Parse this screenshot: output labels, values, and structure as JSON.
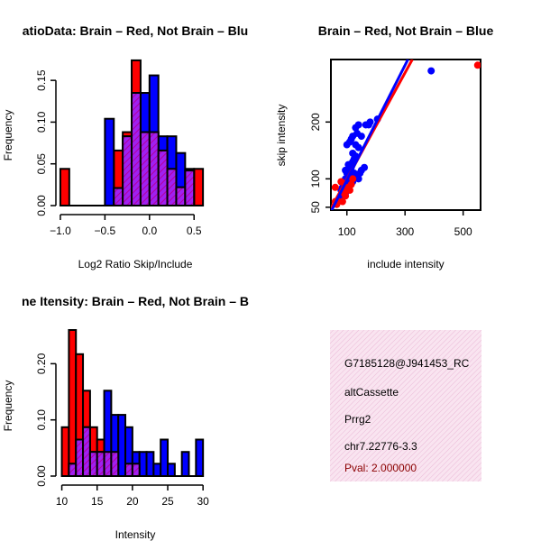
{
  "chart_data": [
    {
      "id": "ratio_hist",
      "type": "histogram",
      "title": "RatioData: Brain - Red, Not Brain - Blue",
      "title_shown": "atioData: Brain – Red, Not Brain – Blu",
      "xlabel": "Log2 Ratio Skip/Include",
      "ylabel": "Frequency",
      "xlim": [
        -1.05,
        0.7
      ],
      "ylim": [
        0,
        0.175
      ],
      "xticks": [
        -1.0,
        -0.5,
        0.0,
        0.5
      ],
      "xtick_labels": [
        "−1.0",
        "−0.5",
        "0.0",
        "0.5"
      ],
      "yticks": [
        0.0,
        0.05,
        0.1,
        0.15
      ],
      "ytick_labels": [
        "0.00",
        "0.05",
        "0.10",
        "0.15"
      ],
      "bin_edges": [
        -1.0,
        -0.9,
        -0.8,
        -0.7,
        -0.6,
        -0.5,
        -0.4,
        -0.3,
        -0.2,
        -0.1,
        0.0,
        0.1,
        0.2,
        0.3,
        0.4,
        0.5,
        0.6
      ],
      "series": [
        {
          "name": "Brain",
          "color": "#ff0000",
          "values": [
            0.044,
            0,
            0,
            0,
            0,
            0,
            0.066,
            0.088,
            0.174,
            0.088,
            0.088,
            0.066,
            0.044,
            0.022,
            0.044,
            0.044
          ]
        },
        {
          "name": "Not Brain",
          "color": "#0000ff",
          "values": [
            0,
            0,
            0,
            0,
            0,
            0.104,
            0.021,
            0.083,
            0.135,
            0.135,
            0.156,
            0.083,
            0.083,
            0.063,
            0.042,
            0
          ]
        }
      ],
      "overlap_color": "#a020f0"
    },
    {
      "id": "scatter",
      "type": "scatter",
      "title": "Brain - Red, Not Brain - Blue",
      "title_shown": "Brain – Red, Not Brain – Blue",
      "xlabel": "include intensity",
      "ylabel": "skip intensity",
      "xlim": [
        45,
        560
      ],
      "ylim": [
        45,
        310
      ],
      "xticks": [
        100,
        300,
        500
      ],
      "xtick_labels": [
        "100",
        "300",
        "500"
      ],
      "yticks": [
        50,
        100,
        200
      ],
      "ytick_labels": [
        "50",
        "100",
        "200"
      ],
      "series": [
        {
          "name": "Not Brain",
          "color": "#0000ff",
          "points": [
            [
              100,
              160
            ],
            [
              110,
              165
            ],
            [
              115,
              170
            ],
            [
              120,
              175
            ],
            [
              130,
              190
            ],
            [
              135,
              180
            ],
            [
              140,
              195
            ],
            [
              150,
              175
            ],
            [
              165,
              195
            ],
            [
              175,
              195
            ],
            [
              180,
              200
            ],
            [
              205,
              205
            ],
            [
              390,
              290
            ],
            [
              95,
              115
            ],
            [
              100,
              110
            ],
            [
              105,
              125
            ],
            [
              110,
              125
            ],
            [
              115,
              120
            ],
            [
              120,
              130
            ],
            [
              120,
              145
            ],
            [
              125,
              135
            ],
            [
              130,
              140
            ],
            [
              130,
              160
            ],
            [
              140,
              155
            ],
            [
              95,
              100
            ],
            [
              100,
              95
            ],
            [
              105,
              100
            ],
            [
              110,
              105
            ],
            [
              115,
              110
            ],
            [
              125,
              110
            ],
            [
              130,
              105
            ],
            [
              140,
              100
            ],
            [
              145,
              110
            ],
            [
              150,
              115
            ],
            [
              160,
              120
            ],
            [
              80,
              80
            ],
            [
              85,
              85
            ],
            [
              90,
              90
            ],
            [
              95,
              85
            ],
            [
              85,
              75
            ],
            [
              90,
              70
            ],
            [
              95,
              75
            ],
            [
              75,
              65
            ],
            [
              80,
              70
            ],
            [
              70,
              60
            ],
            [
              80,
              62
            ],
            [
              105,
              90
            ],
            [
              110,
              95
            ],
            [
              120,
              95
            ]
          ]
        },
        {
          "name": "Brain",
          "color": "#ff0000",
          "points": [
            [
              550,
              300
            ],
            [
              70,
              60
            ],
            [
              80,
              95
            ],
            [
              60,
              85
            ],
            [
              65,
              55
            ],
            [
              85,
              60
            ],
            [
              90,
              75
            ],
            [
              95,
              70
            ],
            [
              100,
              80
            ],
            [
              105,
              85
            ],
            [
              110,
              80
            ],
            [
              115,
              90
            ],
            [
              120,
              100
            ],
            [
              60,
              60
            ]
          ]
        }
      ],
      "fit_lines": [
        {
          "color": "#ff0000",
          "from": [
            45,
            48
          ],
          "to": [
            325,
            310
          ]
        },
        {
          "color": "#0000ff",
          "from": [
            45,
            42
          ],
          "to": [
            310,
            310
          ]
        }
      ]
    },
    {
      "id": "intensity_hist",
      "type": "histogram",
      "title": "Gene Itensity: Brain - Red, Not Brain - Blue",
      "title_shown": "ne Itensity: Brain – Red, Not Brain – B",
      "xlabel": "Intensity",
      "ylabel": "Frequency",
      "xlim": [
        9.8,
        31
      ],
      "ylim": [
        0,
        0.26
      ],
      "xticks": [
        10,
        15,
        20,
        25,
        30
      ],
      "xtick_labels": [
        "10",
        "15",
        "20",
        "25",
        "30"
      ],
      "yticks": [
        0.0,
        0.1,
        0.2
      ],
      "ytick_labels": [
        "0.00",
        "0.10",
        "0.20"
      ],
      "bin_edges": [
        10,
        11,
        12,
        13,
        14,
        15,
        16,
        17,
        18,
        19,
        20,
        21,
        22,
        23,
        24,
        25,
        26,
        27,
        28,
        29,
        30
      ],
      "series": [
        {
          "name": "Brain",
          "color": "#ff0000",
          "values": [
            0.087,
            0.26,
            0.217,
            0.152,
            0.087,
            0.065,
            0.043,
            0.043,
            0,
            0.022,
            0.022,
            0,
            0,
            0,
            0,
            0,
            0,
            0,
            0,
            0
          ]
        },
        {
          "name": "Not Brain",
          "color": "#0000ff",
          "values": [
            0,
            0.022,
            0.065,
            0.087,
            0.043,
            0.043,
            0.152,
            0.109,
            0.109,
            0.087,
            0.043,
            0.043,
            0.043,
            0.022,
            0.065,
            0.022,
            0,
            0.043,
            0,
            0.065
          ]
        }
      ],
      "overlap_color": "#a020f0"
    }
  ],
  "info_panel": {
    "background": "#f7dcec",
    "lines": [
      "G7185128@J941453_RC",
      "altCassette",
      "Prrg2",
      "chr7.22776-3.3"
    ],
    "pval": "Pval: 2.000000",
    "pval_color": "#8b0000"
  }
}
